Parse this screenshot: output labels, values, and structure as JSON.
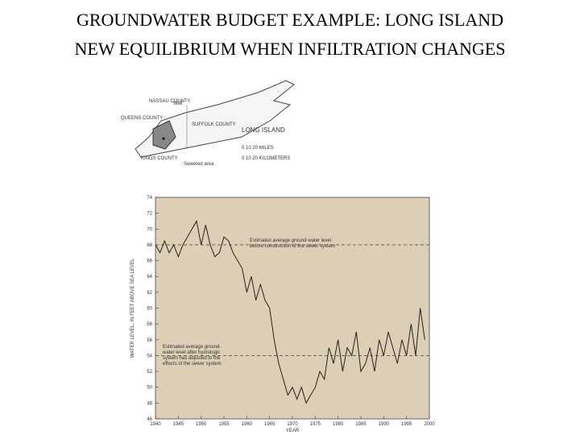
{
  "title_lines": [
    "GROUNDWATER BUDGET EXAMPLE: LONG ISLAND",
    "NEW EQUILIBRIUM WHEN INFILTRATION CHANGES"
  ],
  "map": {
    "labels": [
      "NASSAU COUNTY",
      "Well",
      "QUEENS COUNTY",
      "SUFFOLK COUNTY",
      "LONG ISLAND",
      "KINGS COUNTY",
      "Sewered area"
    ],
    "scale_miles": "0 10 20 MILES",
    "scale_km": "0 10 20 KILOMETERS"
  },
  "chart_data": {
    "type": "line",
    "color": "#222222",
    "xlabel": "YEAR",
    "ylabel": "WATER LEVEL, IN FEET ABOVE SEA LEVEL",
    "x": [
      1940,
      1941,
      1942,
      1943,
      1944,
      1945,
      1946,
      1947,
      1948,
      1949,
      1950,
      1951,
      1952,
      1953,
      1954,
      1955,
      1956,
      1957,
      1958,
      1959,
      1960,
      1961,
      1962,
      1963,
      1964,
      1965,
      1966,
      1967,
      1968,
      1969,
      1970,
      1971,
      1972,
      1973,
      1974,
      1975,
      1976,
      1977,
      1978,
      1979,
      1980,
      1981,
      1982,
      1983,
      1984,
      1985,
      1986,
      1987,
      1988,
      1989,
      1990,
      1991,
      1992,
      1993,
      1994,
      1995,
      1996,
      1997,
      1998,
      1999
    ],
    "values": [
      68,
      67,
      68.5,
      67,
      68,
      66.5,
      68,
      69,
      70,
      71,
      68,
      70.5,
      68,
      66.5,
      67,
      69,
      68.5,
      67,
      66,
      65,
      62,
      64,
      61,
      63,
      61,
      60,
      56,
      53,
      51,
      49,
      50,
      48.5,
      50,
      48,
      49,
      50,
      52,
      51,
      55,
      53,
      56,
      52,
      55,
      54,
      57,
      52,
      53,
      55,
      52,
      56,
      54,
      57,
      55,
      53,
      56,
      54,
      58,
      54,
      60,
      56
    ],
    "xlim": [
      1940,
      2000
    ],
    "ylim": [
      46,
      74
    ],
    "xticks": [
      1940,
      1945,
      1950,
      1955,
      1960,
      1965,
      1970,
      1975,
      1980,
      1985,
      1990,
      1995,
      2000
    ],
    "yticks": [
      46,
      48,
      50,
      52,
      54,
      56,
      58,
      60,
      62,
      64,
      66,
      68,
      70,
      72,
      74
    ],
    "reference_lines": [
      {
        "value": 68,
        "label_lines": [
          "Estimated average ground-water level",
          "before construction of the sewer system"
        ]
      },
      {
        "value": 54,
        "label_lines": [
          "Estimated average ground-",
          "water level after hydrologic",
          "system has adjusted to the",
          "effects of the sewer system"
        ]
      }
    ]
  }
}
